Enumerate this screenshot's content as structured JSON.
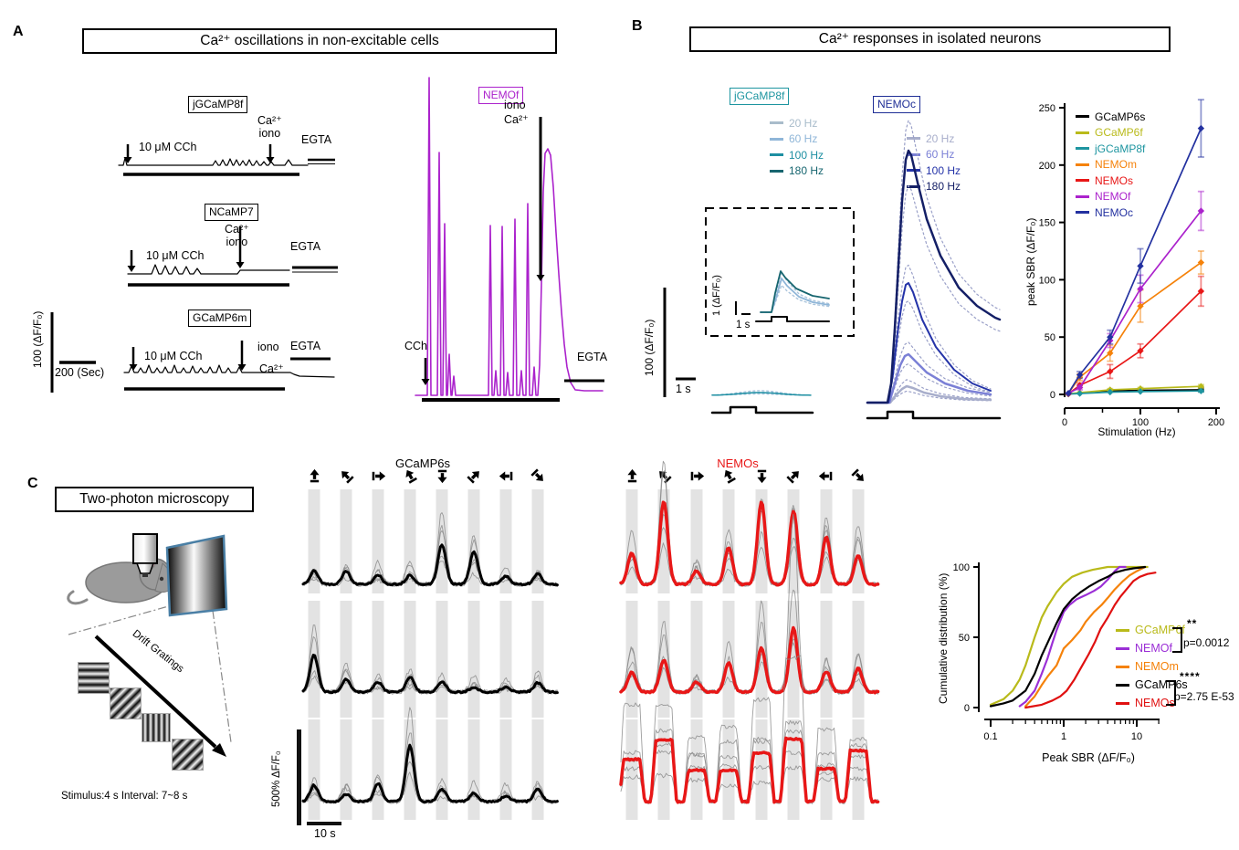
{
  "figure": {
    "background": "#ffffff"
  },
  "panel_a": {
    "label": "A",
    "title": "Ca²⁺ oscillations in non-excitable cells",
    "rows": [
      {
        "tag": "jGCaMP8f",
        "stim": "10 μM CCh",
        "ion_top": "Ca²⁺",
        "ion_bottom": "iono",
        "egta": "EGTA"
      },
      {
        "tag": "NCaMP7",
        "stim": "10 μM CCh",
        "ion_top": "Ca²⁺",
        "ion_bottom": "iono",
        "egta": "EGTA"
      },
      {
        "tag": "GCaMP6m",
        "stim": "10 μM CCh",
        "ion_top": "iono",
        "ion_bottom": "Ca²⁺",
        "egta": "EGTA"
      }
    ],
    "scale_y": "100 (ΔF/F₀)",
    "scale_x": "200 (Sec)",
    "nemof": {
      "tag": "NEMOf",
      "iono": "iono",
      "ca": "Ca²⁺",
      "cch": "CCh",
      "egta": "EGTA",
      "color": "#ab22cc"
    }
  },
  "panel_b": {
    "label": "B",
    "title": "Ca²⁺ responses in isolated neurons",
    "jgcamp8f": {
      "tag": "jGCaMP8f",
      "color": "#1d95a0",
      "legend": [
        {
          "label": "20 Hz",
          "color": "#a9bccb"
        },
        {
          "label": "60 Hz",
          "color": "#8fb6d8"
        },
        {
          "label": "100 Hz",
          "color": "#1d8fa2"
        },
        {
          "label": "180 Hz",
          "color": "#16656f"
        }
      ]
    },
    "nemoc": {
      "tag": "NEMOc",
      "color": "#1f2e96",
      "legend": [
        {
          "label": "20 Hz",
          "color": "#a8aecb"
        },
        {
          "label": "60 Hz",
          "color": "#7b80d6"
        },
        {
          "label": "100 Hz",
          "color": "#2433a8"
        },
        {
          "label": "180 Hz",
          "color": "#141f66"
        }
      ]
    },
    "scale_y": "100 (ΔF/F₀)",
    "scale_x": "1 s",
    "inset": {
      "scale_y": "1 (ΔF/F₀)",
      "scale_x": "1 s"
    }
  },
  "panel_c": {
    "label": "C",
    "title": "Two-photon microscopy",
    "drift_label": "Drift Gratings",
    "stimulus_note": "Stimulus:4 s Interval: 7~8 s",
    "scale_y": "500% ΔF/F₀",
    "scale_x": "10 s",
    "left_title": "GCaMP6s",
    "right_title": "NEMOs",
    "left_title_color": "#000000",
    "right_title_color": "#e81717",
    "grating_directions_deg": [
      0,
      315,
      90,
      330,
      180,
      45,
      270,
      135
    ]
  },
  "chart_data": [
    {
      "type": "line",
      "name": "peak-sbr-vs-stimulation",
      "xlabel": "Stimulation (Hz)",
      "ylabel": "peak SBR (ΔF/F₀)",
      "xlim": [
        0,
        200
      ],
      "ylim": [
        0,
        250
      ],
      "xticks": [
        0,
        100,
        200
      ],
      "xminor": [
        50,
        150
      ],
      "yticks": [
        0,
        50,
        100,
        150,
        200,
        250
      ],
      "legend_position": "top-left",
      "x": [
        5,
        20,
        60,
        100,
        180
      ],
      "series": [
        {
          "name": "GCaMP6s",
          "color": "#000000",
          "values": [
            0.5,
            1,
            3,
            3.5,
            4
          ],
          "errors": [
            0.3,
            0.5,
            1,
            1,
            1.5
          ]
        },
        {
          "name": "GCaMP6f",
          "color": "#b9ba1a",
          "values": [
            0.5,
            1.5,
            4,
            5,
            7
          ],
          "errors": [
            0.3,
            0.5,
            1,
            1,
            1.5
          ]
        },
        {
          "name": "jGCaMP8f",
          "color": "#1d95a0",
          "values": [
            0.3,
            0.8,
            2,
            2.5,
            3
          ],
          "errors": [
            0.2,
            0.3,
            0.8,
            0.8,
            1
          ]
        },
        {
          "name": "NEMOm",
          "color": "#f5820a",
          "values": [
            1,
            15,
            36,
            77,
            115
          ],
          "errors": [
            0.5,
            3,
            7,
            14,
            10
          ]
        },
        {
          "name": "NEMOs",
          "color": "#e81717",
          "values": [
            0.5,
            8,
            20,
            38,
            90
          ],
          "errors": [
            0.3,
            2,
            6,
            6,
            13
          ]
        },
        {
          "name": "NEMOf",
          "color": "#ab22cc",
          "values": [
            1,
            6,
            47,
            92,
            160
          ],
          "errors": [
            0.5,
            2,
            6,
            12,
            17
          ]
        },
        {
          "name": "NEMOc",
          "color": "#2331a0",
          "values": [
            1,
            17,
            50,
            112,
            232
          ],
          "errors": [
            0.5,
            3,
            6,
            15,
            25
          ]
        }
      ]
    },
    {
      "type": "line",
      "name": "cumulative-distribution",
      "xscale": "log",
      "xlabel": "Peak SBR (ΔF/F₀)",
      "ylabel": "Cumulative distribution (%)",
      "xlim": [
        0.1,
        20
      ],
      "ylim": [
        0,
        100
      ],
      "xticks": [
        0.1,
        1,
        10
      ],
      "yticks": [
        0,
        50,
        100
      ],
      "series": [
        {
          "name": "GCaMP6f",
          "color": "#b9ba1a",
          "points": [
            [
              0.1,
              2
            ],
            [
              0.15,
              6
            ],
            [
              0.2,
              12
            ],
            [
              0.25,
              20
            ],
            [
              0.3,
              30
            ],
            [
              0.4,
              50
            ],
            [
              0.5,
              64
            ],
            [
              0.6,
              72
            ],
            [
              0.8,
              82
            ],
            [
              1,
              88
            ],
            [
              1.3,
              93
            ],
            [
              1.8,
              96
            ],
            [
              2.5,
              98
            ],
            [
              4,
              100
            ],
            [
              14,
              100
            ]
          ]
        },
        {
          "name": "NEMOf",
          "color": "#9b2fd6",
          "points": [
            [
              0.25,
              1
            ],
            [
              0.3,
              4
            ],
            [
              0.4,
              12
            ],
            [
              0.5,
              24
            ],
            [
              0.6,
              35
            ],
            [
              0.7,
              46
            ],
            [
              0.8,
              55
            ],
            [
              1,
              68
            ],
            [
              1.2,
              73
            ],
            [
              1.5,
              77
            ],
            [
              2,
              80
            ],
            [
              2.6,
              83
            ],
            [
              3.2,
              86
            ],
            [
              4,
              91
            ],
            [
              5,
              97
            ],
            [
              5.8,
              100
            ],
            [
              7,
              100
            ]
          ]
        },
        {
          "name": "NEMOm",
          "color": "#f5820a",
          "points": [
            [
              0.3,
              1
            ],
            [
              0.4,
              8
            ],
            [
              0.5,
              16
            ],
            [
              0.6,
              22
            ],
            [
              0.8,
              30
            ],
            [
              1,
              42
            ],
            [
              1.3,
              48
            ],
            [
              1.7,
              55
            ],
            [
              2,
              61
            ],
            [
              2.6,
              68
            ],
            [
              3.3,
              73
            ],
            [
              4,
              78
            ],
            [
              5,
              84
            ],
            [
              6.5,
              90
            ],
            [
              8,
              94
            ],
            [
              10,
              97
            ],
            [
              13,
              100
            ]
          ]
        },
        {
          "name": "GCaMP6s",
          "color": "#000000",
          "points": [
            [
              0.1,
              1
            ],
            [
              0.15,
              3
            ],
            [
              0.2,
              5
            ],
            [
              0.3,
              12
            ],
            [
              0.4,
              24
            ],
            [
              0.5,
              37
            ],
            [
              0.6,
              46
            ],
            [
              0.8,
              60
            ],
            [
              1,
              70
            ],
            [
              1.3,
              77
            ],
            [
              1.7,
              82
            ],
            [
              2.2,
              86
            ],
            [
              3,
              90
            ],
            [
              4,
              93
            ],
            [
              5,
              96
            ],
            [
              7,
              98
            ],
            [
              9,
              99
            ],
            [
              13,
              100
            ]
          ]
        },
        {
          "name": "NEMOs",
          "color": "#e01010",
          "points": [
            [
              0.3,
              0
            ],
            [
              0.5,
              2
            ],
            [
              0.7,
              5
            ],
            [
              0.9,
              8
            ],
            [
              1.1,
              12
            ],
            [
              1.4,
              20
            ],
            [
              1.8,
              30
            ],
            [
              2.2,
              38
            ],
            [
              2.7,
              47
            ],
            [
              3.2,
              56
            ],
            [
              4,
              64
            ],
            [
              5,
              73
            ],
            [
              6,
              79
            ],
            [
              7.5,
              85
            ],
            [
              9,
              90
            ],
            [
              11,
              93
            ],
            [
              14,
              95
            ],
            [
              18,
              96
            ]
          ]
        }
      ],
      "annotations": [
        {
          "stars": "**",
          "p_label": "p=0.0012",
          "pair": [
            "GCaMP6f",
            "NEMOf"
          ]
        },
        {
          "stars": "****",
          "p_label": "p=2.75 E-53",
          "pair": [
            "GCaMP6s",
            "NEMOs"
          ]
        }
      ]
    }
  ]
}
